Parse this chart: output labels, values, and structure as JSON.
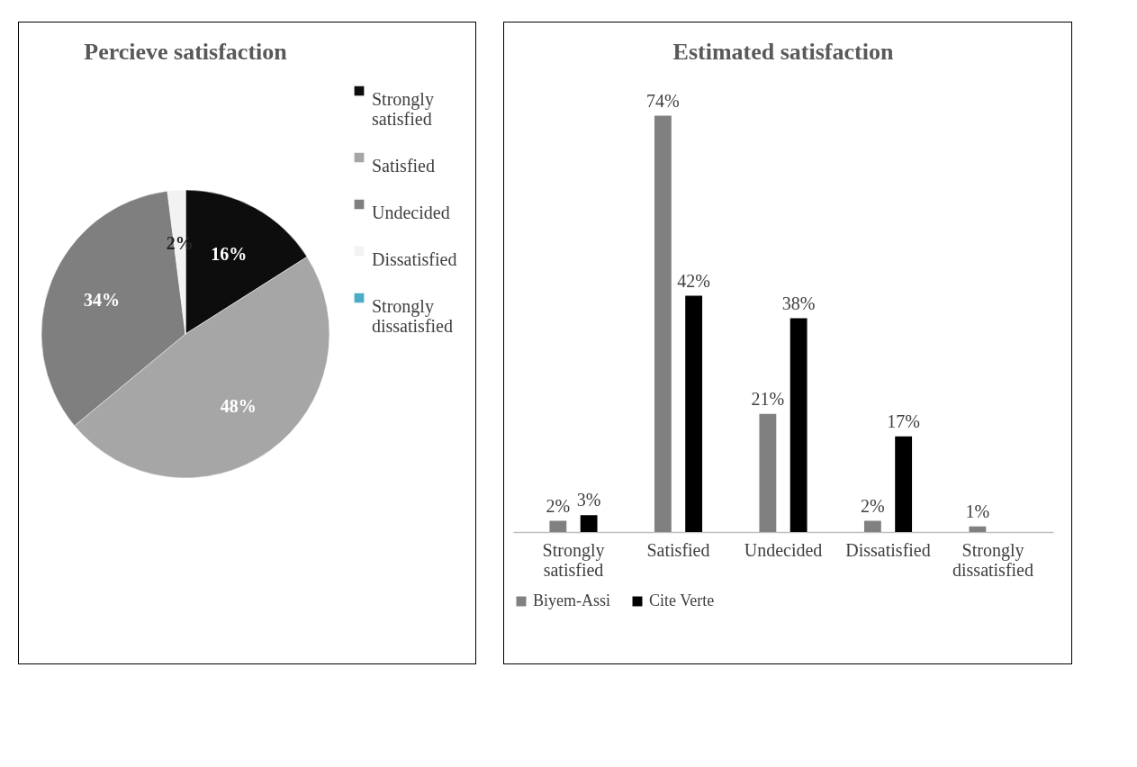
{
  "chart_data": [
    {
      "type": "pie",
      "title": "Percieve satisfaction",
      "categories": [
        "Strongly satisfied",
        "Satisfied",
        "Undecided",
        "Dissatisfied",
        "Strongly dissatisfied"
      ],
      "values": [
        16,
        48,
        34,
        2,
        0
      ],
      "colors": [
        "#0d0d0d",
        "#a6a6a6",
        "#7f7f7f",
        "#f2f2f2",
        "#4bacc6"
      ],
      "value_labels": [
        "16%",
        "48%",
        "34%",
        "2%",
        null
      ],
      "legend": "right"
    },
    {
      "type": "bar",
      "title": "Estimated satisfaction",
      "categories": [
        "Strongly satisfied",
        "Satisfied",
        "Undecided",
        "Dissatisfied",
        "Strongly dissatisfied"
      ],
      "series": [
        {
          "name": "Biyem-Assi",
          "color": "#808080",
          "values": [
            2,
            74,
            21,
            2,
            1
          ],
          "value_labels": [
            "2%",
            "74%",
            "21%",
            "2%",
            "1%"
          ]
        },
        {
          "name": "Cite Verte",
          "color": "#000000",
          "values": [
            3,
            42,
            38,
            17,
            null
          ],
          "value_labels": [
            "3%",
            "42%",
            "38%",
            "17%",
            null
          ]
        }
      ],
      "legend": "bottom"
    }
  ]
}
